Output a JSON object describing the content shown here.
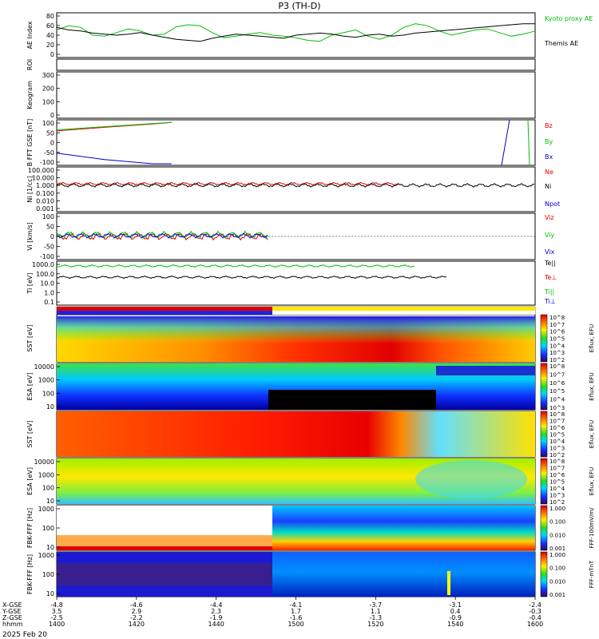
{
  "title": "P3 (TH-D)",
  "footer_date": "2025 Feb 20",
  "ephem_labels": [
    "X-GSE",
    "Y-GSE",
    "Z-GSE",
    "hhmm"
  ],
  "ephem_rows": [
    [
      "-4.8",
      "3.5",
      "-2.5",
      "1400"
    ],
    [
      "-4.6",
      "2.9",
      "-2.2",
      "1420"
    ],
    [
      "-4.4",
      "2.3",
      "-1.9",
      "1440"
    ],
    [
      "-4.1",
      "1.7",
      "-1.6",
      "1500"
    ],
    [
      "-3.7",
      "1.1",
      "-1.3",
      "1520"
    ],
    [
      "-3.1",
      "0.4",
      "-0.9",
      "1540"
    ],
    [
      "-2.4",
      "-0.3",
      "-0.4",
      "1600"
    ]
  ],
  "colorbars": [
    {
      "label": "Eflux, EFU",
      "ticks": [
        "10^8",
        "10^7",
        "10^6",
        "10^5",
        "10^4",
        "10^3",
        "10^2"
      ]
    },
    {
      "label": "Eflux, EFU",
      "ticks": [
        "10^8",
        "10^7",
        "10^6",
        "10^5",
        "10^4",
        "10^3"
      ]
    },
    {
      "label": "Eflux, EFU",
      "ticks": [
        "10^8",
        "10^7",
        "10^6",
        "10^5",
        "10^4",
        "10^3",
        "10^2"
      ]
    },
    {
      "label": "Eflux, EFU",
      "ticks": [
        "10^8",
        "10^7",
        "10^6",
        "10^5",
        "10^4",
        "10^3",
        "10^2"
      ]
    },
    {
      "label": "FFF-100mV/m/",
      "ticks": [
        "1.000",
        "0.100",
        "0.010",
        "0.001"
      ]
    },
    {
      "label": "FFF-mTnT",
      "ticks": [
        "1.000",
        "0.100",
        "0.010",
        "0.001"
      ]
    }
  ],
  "chart_data": [
    {
      "type": "line",
      "ylabel": "AE Index",
      "yticks": [
        "80",
        "60",
        "40",
        "20",
        "0"
      ],
      "ylim": [
        0,
        80
      ],
      "xlim": [
        1400,
        1600
      ],
      "series": [
        {
          "name": "Kyoto proxy AE",
          "color": "#00c000",
          "x": [
            1400,
            1405,
            1410,
            1415,
            1420,
            1425,
            1430,
            1435,
            1440,
            1445,
            1450,
            1455,
            1460,
            1465,
            1470,
            1475,
            1480,
            1485,
            1490,
            1495,
            1500,
            1505,
            1510,
            1515,
            1520,
            1525,
            1530,
            1535,
            1540,
            1545,
            1550,
            1555,
            1560,
            1565,
            1570,
            1575,
            1580,
            1585,
            1590,
            1595,
            1600
          ],
          "y": [
            50,
            58,
            55,
            40,
            38,
            45,
            52,
            48,
            40,
            42,
            56,
            60,
            58,
            45,
            35,
            38,
            42,
            45,
            40,
            38,
            35,
            30,
            28,
            40,
            45,
            50,
            38,
            32,
            40,
            55,
            62,
            58,
            48,
            40,
            45,
            50,
            52,
            45,
            38,
            42,
            48
          ]
        },
        {
          "name": "Themis AE",
          "color": "#000000",
          "x": [
            1400,
            1405,
            1410,
            1415,
            1420,
            1425,
            1430,
            1435,
            1440,
            1445,
            1450,
            1455,
            1460,
            1465,
            1470,
            1475,
            1480,
            1485,
            1490,
            1495,
            1500,
            1505,
            1510,
            1515,
            1520,
            1525,
            1530,
            1535,
            1540,
            1545,
            1550,
            1555,
            1560,
            1565,
            1570,
            1575,
            1580,
            1585,
            1590,
            1595,
            1600
          ],
          "y": [
            55,
            50,
            48,
            44,
            42,
            40,
            42,
            45,
            40,
            36,
            32,
            30,
            28,
            34,
            38,
            42,
            40,
            38,
            36,
            34,
            40,
            42,
            44,
            42,
            38,
            36,
            40,
            42,
            38,
            40,
            44,
            46,
            48,
            50,
            52,
            54,
            56,
            58,
            60,
            62,
            62
          ]
        }
      ]
    },
    {
      "type": "scatter",
      "ylabel": "ROI"
    },
    {
      "type": "heatmap",
      "ylabel": "Keogram",
      "yticks": [
        "300",
        "200",
        "100",
        "0"
      ]
    },
    {
      "type": "line",
      "ylabel": "B FFT GSE [nT]",
      "yticks": [
        "100",
        "50",
        "0",
        "-50",
        "-100"
      ],
      "ylim": [
        -100,
        100
      ],
      "series": [
        {
          "name": "Bz",
          "color": "#e00000",
          "x": [
            1400,
            1420,
            1440,
            1448
          ],
          "y": [
            55,
            72,
            88,
            95
          ]
        },
        {
          "name": "By",
          "color": "#00c000",
          "x": [
            1400,
            1420,
            1440,
            1448
          ],
          "y": [
            60,
            75,
            90,
            96
          ]
        },
        {
          "name": "Bx",
          "color": "#0000d0",
          "x": [
            1400,
            1420,
            1440,
            1448
          ],
          "y": [
            -50,
            -80,
            -100,
            -100
          ]
        }
      ]
    },
    {
      "type": "line",
      "ylabel": "Ni [1/cc]",
      "yticks": [
        "100.000",
        "10.000",
        "1.000",
        "0.100",
        "0.010",
        "0.001"
      ],
      "ylim": [
        0.001,
        100
      ],
      "series": [
        {
          "name": "Ne",
          "color": "#e00000"
        },
        {
          "name": "Ni",
          "color": "#000000"
        },
        {
          "name": "Npot",
          "color": "#0000d0"
        }
      ]
    },
    {
      "type": "line",
      "ylabel": "Vi [km/s]",
      "yticks": [
        "100",
        "50",
        "0",
        "-50",
        "-100"
      ],
      "ylim": [
        -100,
        100
      ],
      "series": [
        {
          "name": "Viz",
          "color": "#e00000"
        },
        {
          "name": "Viy",
          "color": "#00c000"
        },
        {
          "name": "Vix",
          "color": "#0000d0"
        }
      ]
    },
    {
      "type": "line",
      "ylabel": "Ti [eV]",
      "yticks": [
        "1000.0",
        "100.0",
        "10.0",
        "1.0",
        "0.1"
      ],
      "ylim": [
        0.1,
        1000
      ],
      "series": [
        {
          "name": "Te||",
          "color": "#000000"
        },
        {
          "name": "Te⊥",
          "color": "#e00000"
        },
        {
          "name": "Ti||",
          "color": "#00c000"
        },
        {
          "name": "Ti⊥",
          "color": "#0000d0"
        }
      ]
    },
    {
      "type": "heatmap",
      "ylabel": "SST [eV]"
    },
    {
      "type": "heatmap",
      "ylabel": "ESA [eV]",
      "yticks": [
        "10000",
        "1000",
        "100",
        "10"
      ]
    },
    {
      "type": "heatmap",
      "ylabel": "SST [eV]"
    },
    {
      "type": "heatmap",
      "ylabel": "ESA [eV]",
      "yticks": [
        "10000",
        "1000",
        "100",
        "10"
      ]
    },
    {
      "type": "heatmap",
      "ylabel": "FBK-FFF [Hz]",
      "yticks": [
        "1000",
        "100",
        "10"
      ]
    },
    {
      "type": "heatmap",
      "ylabel": "FBK-FFF [Hz]",
      "yticks": [
        "1000",
        "100",
        "10"
      ]
    }
  ]
}
